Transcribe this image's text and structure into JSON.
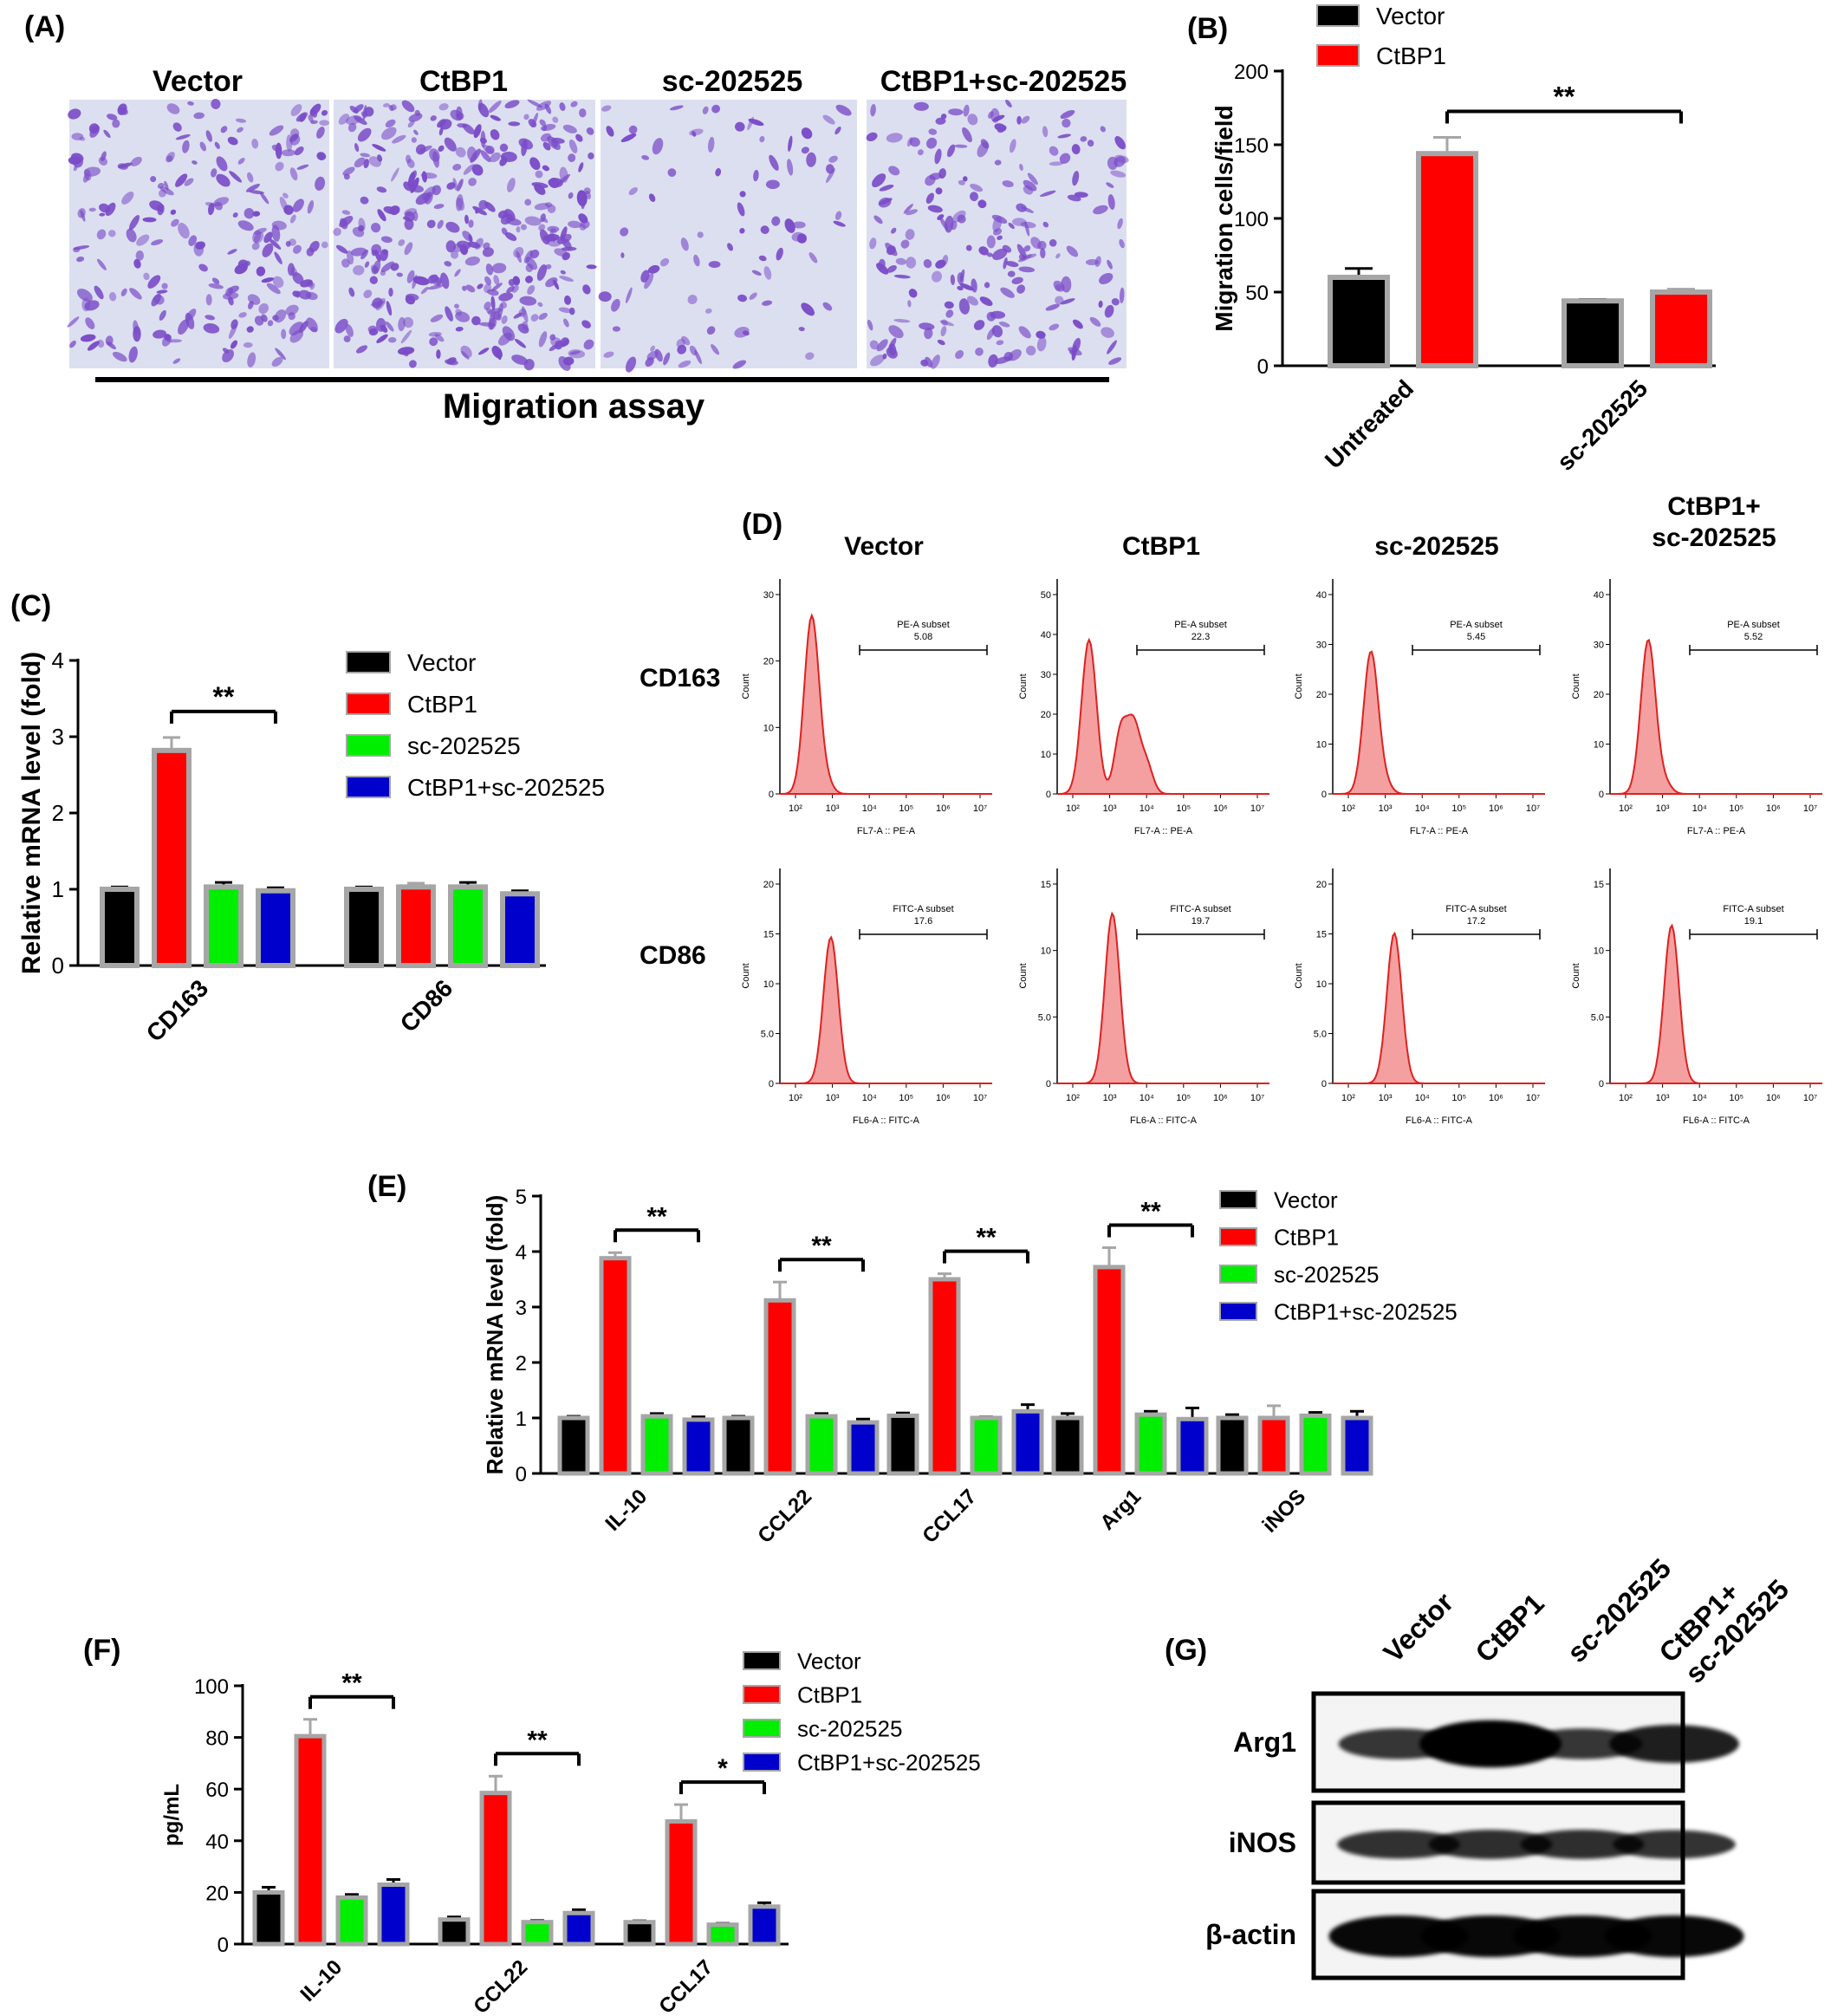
{
  "panel_labels": {
    "A": "(A)",
    "B": "(B)",
    "C": "(C)",
    "D": "(D)",
    "E": "(E)",
    "F": "(F)",
    "G": "(G)"
  },
  "colors": {
    "vector": "#000000",
    "ctbp1": "#ff0000",
    "sc": "#00ee00",
    "combo": "#0000cc",
    "bar_edge": "#a6a6a6",
    "flow_fill": "#f4a0a0",
    "flow_line": "#e02020",
    "micro_bg": "#dcdff0",
    "micro_cell": "#7a4cc8"
  },
  "panelA": {
    "images": [
      "Vector",
      "CtBP1",
      "sc-202525",
      "CtBP1+sc-202525"
    ],
    "caption": "Migration assay",
    "cell_density": [
      0.55,
      0.85,
      0.22,
      0.5
    ]
  },
  "chart_data": [
    {
      "id": "B",
      "type": "bar",
      "categories": [
        "Untreated",
        "sc-202525"
      ],
      "series": [
        {
          "name": "Vector",
          "values": [
            60,
            44
          ],
          "errors": [
            6,
            1
          ]
        },
        {
          "name": "CtBP1",
          "values": [
            144,
            50
          ],
          "errors": [
            11,
            2
          ]
        }
      ],
      "ylabel": "Migration cells/field",
      "ylim": [
        0,
        200
      ],
      "yticks": [
        "0",
        "50",
        "100",
        "150",
        "200"
      ],
      "significance": [
        {
          "from": "Untreated",
          "to": "sc-202525",
          "label": "**"
        }
      ],
      "legend": "top"
    },
    {
      "id": "C",
      "type": "bar",
      "categories": [
        "CD163",
        "CD86"
      ],
      "series": [
        {
          "name": "Vector",
          "values": [
            1.0,
            1.0
          ],
          "errors": [
            0.03,
            0.03
          ]
        },
        {
          "name": "CtBP1",
          "values": [
            2.82,
            1.03
          ],
          "errors": [
            0.17,
            0.05
          ]
        },
        {
          "name": "sc-202525",
          "values": [
            1.03,
            1.03
          ],
          "errors": [
            0.06,
            0.06
          ]
        },
        {
          "name": "CtBP1+sc-202525",
          "values": [
            0.98,
            0.94
          ],
          "errors": [
            0.04,
            0.04
          ]
        }
      ],
      "ylabel": "Relative mRNA level (fold)",
      "ylim": [
        0,
        4
      ],
      "yticks": [
        "0",
        "1",
        "2",
        "3",
        "4"
      ],
      "significance": [
        {
          "category": "CD163",
          "label": "**"
        }
      ],
      "legend": "right"
    },
    {
      "id": "E",
      "type": "bar",
      "categories": [
        "IL-10",
        "CCL22",
        "CCL17",
        "Arg1",
        "iNOS"
      ],
      "series": [
        {
          "name": "Vector",
          "values": [
            1.0,
            1.0,
            1.04,
            1.0,
            1.0
          ],
          "errors": [
            0.03,
            0.03,
            0.05,
            0.08,
            0.06
          ]
        },
        {
          "name": "CtBP1",
          "values": [
            3.88,
            3.12,
            3.5,
            3.72,
            1.0
          ],
          "errors": [
            0.1,
            0.33,
            0.1,
            0.35,
            0.22
          ]
        },
        {
          "name": "sc-202525",
          "values": [
            1.03,
            1.03,
            1.0,
            1.06,
            1.04
          ],
          "errors": [
            0.05,
            0.05,
            0.02,
            0.06,
            0.06
          ]
        },
        {
          "name": "CtBP1+sc-202525",
          "values": [
            0.97,
            0.92,
            1.12,
            0.98,
            1.0
          ],
          "errors": [
            0.05,
            0.06,
            0.12,
            0.2,
            0.12
          ]
        }
      ],
      "ylabel": "Relative mRNA level (fold)",
      "ylim": [
        0,
        5
      ],
      "yticks": [
        "0",
        "1",
        "2",
        "3",
        "4",
        "5"
      ],
      "significance": [
        {
          "category": "IL-10",
          "label": "**"
        },
        {
          "category": "CCL22",
          "label": "**"
        },
        {
          "category": "CCL17",
          "label": "**"
        },
        {
          "category": "Arg1",
          "label": "**"
        }
      ],
      "legend": "right"
    },
    {
      "id": "F",
      "type": "bar",
      "categories": [
        "IL-10",
        "CCL22",
        "CCL17"
      ],
      "series": [
        {
          "name": "Vector",
          "values": [
            20,
            9.5,
            8.5
          ],
          "errors": [
            2,
            1,
            0.5
          ]
        },
        {
          "name": "CtBP1",
          "values": [
            80.5,
            58.5,
            47.5
          ],
          "errors": [
            6.5,
            6.5,
            6.5
          ]
        },
        {
          "name": "sc-202525",
          "values": [
            18,
            8.5,
            7.5
          ],
          "errors": [
            1.2,
            0.6,
            0.5
          ]
        },
        {
          "name": "CtBP1+sc-202525",
          "values": [
            23,
            12,
            14.5
          ],
          "errors": [
            2,
            1.3,
            1.5
          ]
        }
      ],
      "ylabel": "pg/mL",
      "ylim": [
        0,
        100
      ],
      "yticks": [
        "0",
        "20",
        "40",
        "60",
        "80",
        "100"
      ],
      "significance": [
        {
          "category": "IL-10",
          "label": "**"
        },
        {
          "category": "CCL22",
          "label": "**"
        },
        {
          "category": "CCL17",
          "label": "*"
        }
      ],
      "legend": "right"
    }
  ],
  "legend_labels": [
    "Vector",
    "CtBP1",
    "sc-202525",
    "CtBP1+sc-202525"
  ],
  "panelD": {
    "column_titles": [
      "Vector",
      "CtBP1",
      "sc-202525",
      "CtBP1+\nsc-202525"
    ],
    "row_labels": [
      "CD163",
      "CD86"
    ],
    "count_label": "Count",
    "rows": [
      {
        "gate_name": "PE-A subset",
        "xaxis": "FL7-A :: PE-A",
        "values": [
          "5.08",
          "22.3",
          "5.45",
          "5.52"
        ],
        "yticks": [
          [
            "0",
            "10",
            "20",
            "30"
          ],
          [
            "0",
            "10",
            "20",
            "30",
            "40",
            "50"
          ],
          [
            "0",
            "10",
            "20",
            "30",
            "40"
          ],
          [
            "0",
            "10",
            "20",
            "30",
            "40"
          ]
        ]
      },
      {
        "gate_name": "FITC-A subset",
        "xaxis": "FL6-A :: FITC-A",
        "values": [
          "17.6",
          "19.7",
          "17.2",
          "19.1"
        ],
        "yticks": [
          [
            "0",
            "5.0",
            "10",
            "15",
            "20"
          ],
          [
            "0",
            "5.0",
            "10",
            "15"
          ],
          [
            "0",
            "5.0",
            "10",
            "15",
            "20"
          ],
          [
            "0",
            "5.0",
            "10",
            "15"
          ]
        ]
      }
    ],
    "xticks": [
      "10²",
      "10³",
      "10⁴",
      "10⁵",
      "10⁶",
      "10⁷"
    ]
  },
  "panelG": {
    "lanes": [
      "Vector",
      "CtBP1",
      "sc-202525",
      "CtBP1+\nsc-202525"
    ],
    "bands": [
      {
        "label": "Arg1",
        "intensity": [
          0.55,
          1.0,
          0.55,
          0.75
        ]
      },
      {
        "label": "iNOS",
        "intensity": [
          0.6,
          0.62,
          0.62,
          0.6
        ]
      },
      {
        "label": "β-actin",
        "intensity": [
          0.95,
          0.95,
          0.95,
          0.95
        ]
      }
    ]
  }
}
